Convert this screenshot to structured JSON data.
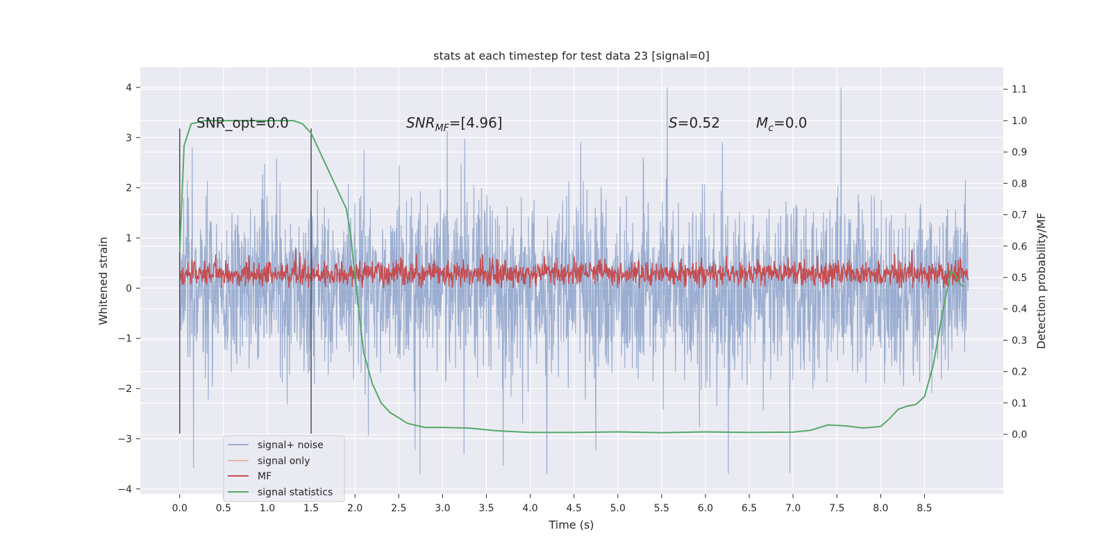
{
  "chart_data": {
    "type": "line",
    "title": "stats at each timestep for test data 23 [signal=0]",
    "xlabel": "Time (s)",
    "ylabel": "Whitened strain",
    "ylabel_right": "Detection probability/MF",
    "xlim": [
      -0.45,
      9.4
    ],
    "ylim": [
      -4.1,
      4.4
    ],
    "ylim_right": [
      -0.19,
      1.17
    ],
    "x_ticks": [
      "0.0",
      "0.5",
      "1.0",
      "1.5",
      "2.0",
      "2.5",
      "3.0",
      "3.5",
      "4.0",
      "4.5",
      "5.0",
      "5.5",
      "6.0",
      "6.5",
      "7.0",
      "7.5",
      "8.0",
      "8.5"
    ],
    "y_ticks": [
      "4",
      "3",
      "2",
      "1",
      "0",
      "−1",
      "−2",
      "−3",
      "−4"
    ],
    "y_right_ticks": [
      "1.1",
      "1.0",
      "0.9",
      "0.8",
      "0.7",
      "0.6",
      "0.5",
      "0.4",
      "0.3",
      "0.2",
      "0.1",
      "0.0"
    ],
    "grid": true,
    "legend_position": "lower-left",
    "annotations": {
      "snr_opt": "SNR_opt=0.0",
      "snr_mf": "SNR",
      "snr_mf_sub": "MF",
      "snr_mf_value": "=[4.96]",
      "s_value": "S",
      "s_text": "=0.52",
      "mc": "M",
      "mc_sub": "c",
      "mc_text": "=0.0"
    },
    "vlines_x": [
      0.0,
      1.5
    ],
    "series": [
      {
        "name": "signal+ noise",
        "color": "#4c72b0",
        "kind": "noise",
        "amplitude_range": [
          -3.7,
          4.0
        ]
      },
      {
        "name": "signal only",
        "color": "#dd8452",
        "values": []
      },
      {
        "name": "MF",
        "color": "#c44e52",
        "kind": "mf",
        "amplitude_range": [
          0.0,
          1.0
        ]
      },
      {
        "name": "signal statistics",
        "color": "#55a868",
        "x": [
          0.0,
          0.05,
          0.13,
          0.3,
          0.6,
          1.0,
          1.3,
          1.4,
          1.5,
          1.6,
          1.7,
          1.8,
          1.9,
          1.95,
          2.0,
          2.05,
          2.1,
          2.2,
          2.3,
          2.4,
          2.6,
          2.8,
          3.0,
          3.3,
          3.6,
          4.0,
          4.5,
          5.0,
          5.5,
          6.0,
          6.5,
          7.0,
          7.2,
          7.4,
          7.6,
          7.8,
          8.0,
          8.1,
          8.2,
          8.3,
          8.4,
          8.5,
          8.6,
          8.7,
          8.8,
          8.85,
          8.9,
          8.95
        ],
        "y": [
          0.58,
          0.92,
          0.99,
          1.0,
          1.0,
          1.0,
          1.0,
          0.99,
          0.96,
          0.9,
          0.84,
          0.78,
          0.72,
          0.64,
          0.5,
          0.38,
          0.26,
          0.16,
          0.1,
          0.07,
          0.035,
          0.022,
          0.022,
          0.02,
          0.012,
          0.006,
          0.006,
          0.008,
          0.005,
          0.008,
          0.006,
          0.007,
          0.013,
          0.03,
          0.027,
          0.02,
          0.025,
          0.05,
          0.08,
          0.09,
          0.095,
          0.12,
          0.22,
          0.38,
          0.52,
          0.51,
          0.48,
          0.47
        ]
      }
    ]
  }
}
